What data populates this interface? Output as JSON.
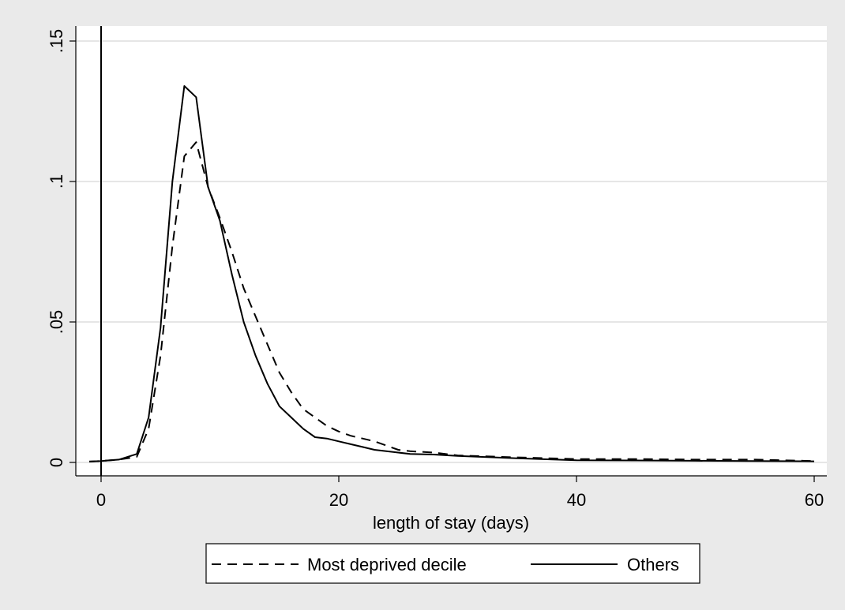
{
  "chart_data": {
    "type": "line",
    "title": "",
    "xlabel": "length of stay (days)",
    "ylabel": "",
    "xlim": [
      -2,
      60
    ],
    "ylim": [
      0,
      0.155
    ],
    "xticks": [
      0,
      20,
      40,
      60
    ],
    "xtick_labels": [
      "0",
      "20",
      "40",
      "60"
    ],
    "yticks": [
      0,
      0.05,
      0.1,
      0.15
    ],
    "ytick_labels": [
      "0",
      ".05",
      ".1",
      ".15"
    ],
    "grid": "horizontal",
    "reference_line_x": 0,
    "legend": "bottom",
    "series": [
      {
        "name": "Most deprived decile",
        "style": "dashed",
        "color": "#000000",
        "x": [
          -1,
          0,
          1.5,
          3,
          4,
          5,
          6,
          7,
          8,
          9,
          10,
          11,
          12,
          13,
          14,
          15,
          16,
          17,
          18,
          19,
          20,
          21,
          22,
          23,
          24,
          25,
          26,
          28,
          30,
          35,
          40,
          45,
          50,
          55,
          60
        ],
        "y": [
          0.0003,
          0.0005,
          0.001,
          0.002,
          0.012,
          0.038,
          0.077,
          0.109,
          0.114,
          0.098,
          0.087,
          0.075,
          0.062,
          0.052,
          0.042,
          0.032,
          0.025,
          0.019,
          0.016,
          0.013,
          0.011,
          0.0095,
          0.0085,
          0.0075,
          0.006,
          0.0045,
          0.004,
          0.0035,
          0.0025,
          0.0018,
          0.0012,
          0.0012,
          0.001,
          0.001,
          0.0005
        ]
      },
      {
        "name": "Others",
        "style": "solid",
        "color": "#000000",
        "x": [
          -1,
          0,
          1.5,
          3,
          4,
          5,
          6,
          7,
          8,
          9,
          10,
          11,
          12,
          13,
          14,
          15,
          16,
          17,
          18,
          19,
          20,
          21,
          22,
          23,
          24,
          25,
          26,
          28,
          30,
          35,
          40,
          45,
          50,
          55,
          60
        ],
        "y": [
          0.0003,
          0.0005,
          0.001,
          0.003,
          0.016,
          0.048,
          0.1,
          0.134,
          0.13,
          0.098,
          0.086,
          0.067,
          0.05,
          0.038,
          0.028,
          0.02,
          0.016,
          0.012,
          0.009,
          0.0085,
          0.0075,
          0.0065,
          0.0055,
          0.0045,
          0.004,
          0.0035,
          0.003,
          0.0028,
          0.0023,
          0.0015,
          0.0008,
          0.0007,
          0.0006,
          0.0005,
          0.0004
        ]
      }
    ]
  }
}
